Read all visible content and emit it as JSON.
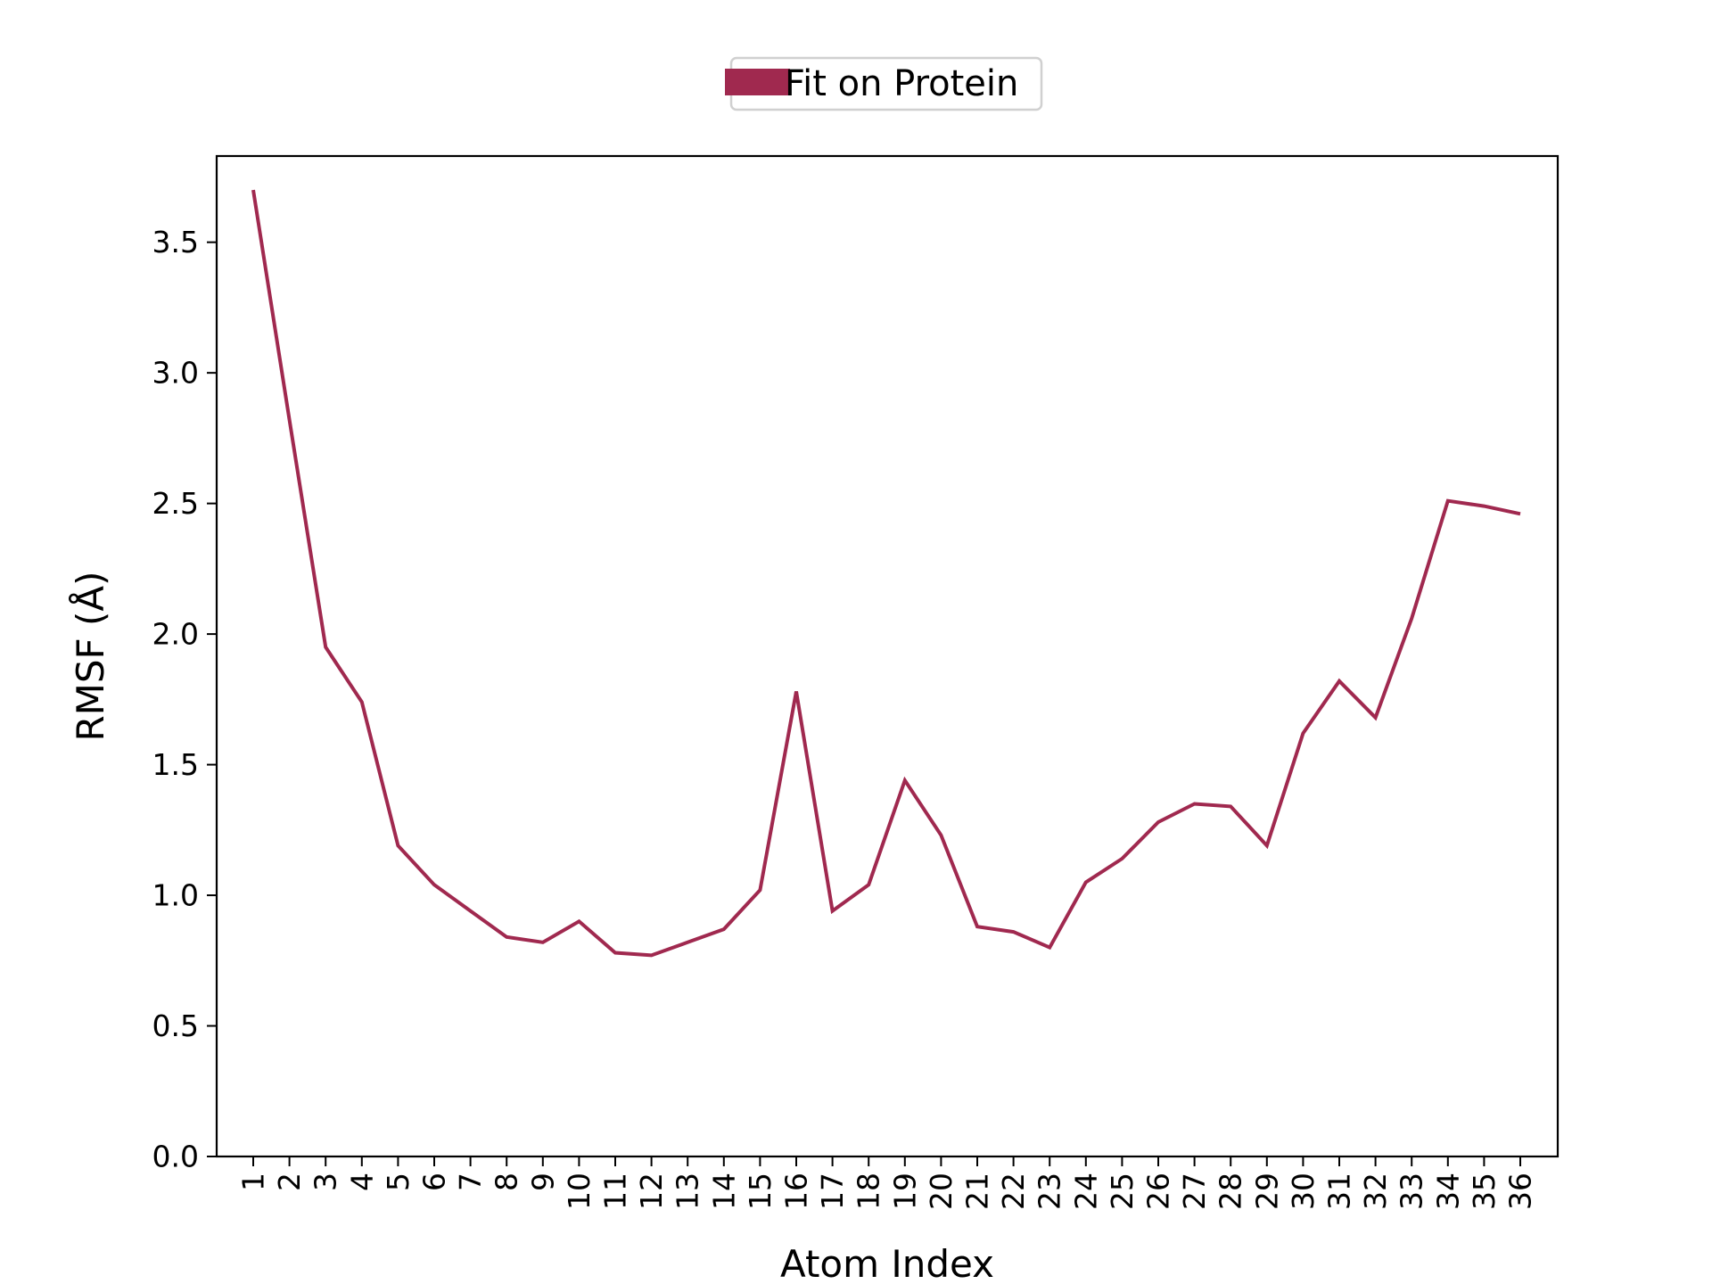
{
  "chart_data": {
    "type": "line",
    "title": "",
    "xlabel": "Atom Index",
    "ylabel": "RMSF (Å)",
    "ylim": [
      0.0,
      3.83
    ],
    "yticks": [
      "0.0",
      "0.5",
      "1.0",
      "1.5",
      "2.0",
      "2.5",
      "3.0",
      "3.5"
    ],
    "grid": false,
    "legend": {
      "placement": "top-center",
      "entries": [
        "Fit on Protein"
      ]
    },
    "x": [
      1,
      2,
      3,
      4,
      5,
      6,
      7,
      8,
      9,
      10,
      11,
      12,
      13,
      14,
      15,
      16,
      17,
      18,
      19,
      20,
      21,
      22,
      23,
      24,
      25,
      26,
      27,
      28,
      29,
      30,
      31,
      32,
      33,
      34,
      35,
      36
    ],
    "series": [
      {
        "name": "Fit on Protein",
        "color": "#a0294f",
        "values": [
          3.7,
          2.82,
          1.95,
          1.74,
          1.19,
          1.04,
          0.94,
          0.84,
          0.82,
          0.9,
          0.78,
          0.77,
          0.82,
          0.87,
          1.02,
          1.78,
          0.94,
          1.04,
          1.44,
          1.23,
          0.88,
          0.86,
          0.8,
          1.05,
          1.14,
          1.28,
          1.35,
          1.34,
          1.19,
          1.62,
          1.82,
          1.68,
          2.06,
          2.51,
          2.49,
          2.46
        ]
      }
    ]
  }
}
